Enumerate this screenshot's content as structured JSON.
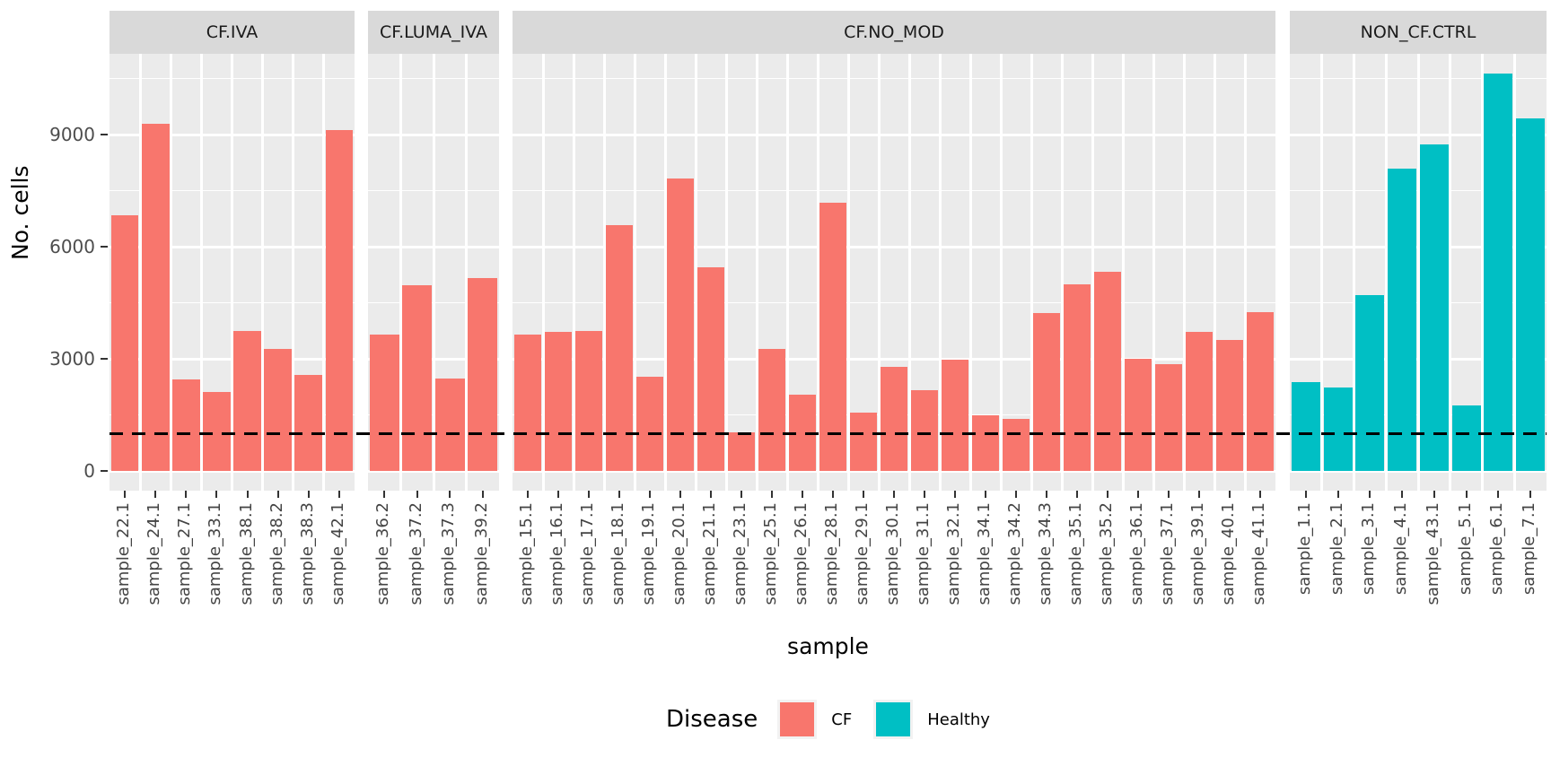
{
  "chart_data": {
    "type": "bar",
    "title": "",
    "xlabel": "sample",
    "ylabel": "No. cells",
    "ylim": [
      0,
      11160
    ],
    "yticks": [
      0,
      3000,
      6000,
      9000
    ],
    "ytick_labels": [
      "0",
      "3000",
      "6000",
      "9000"
    ],
    "minor_gridlines": [
      1500,
      4500,
      7500,
      10500
    ],
    "grid": "on",
    "hline": {
      "y": 1000,
      "style": "dashed",
      "color": "#000000"
    },
    "legend": {
      "title": "Disease",
      "position": "bottom",
      "entries": [
        {
          "label": "CF",
          "color": "#F8766D"
        },
        {
          "label": "Healthy",
          "color": "#00BFC4"
        }
      ]
    },
    "facets": [
      {
        "label": "CF.IVA",
        "group": "CF",
        "color": "#F8766D",
        "samples": [
          "sample_22.1",
          "sample_24.1",
          "sample_27.1",
          "sample_33.1",
          "sample_38.1",
          "sample_38.2",
          "sample_38.3",
          "sample_42.1"
        ],
        "values": [
          6840,
          9290,
          2460,
          2120,
          3740,
          3260,
          2580,
          9120
        ]
      },
      {
        "label": "CF.LUMA_IVA",
        "group": "CF",
        "color": "#F8766D",
        "samples": [
          "sample_36.2",
          "sample_37.2",
          "sample_37.3",
          "sample_39.2"
        ],
        "values": [
          3640,
          4970,
          2480,
          5160
        ]
      },
      {
        "label": "CF.NO_MOD",
        "group": "CF",
        "color": "#F8766D",
        "samples": [
          "sample_15.1",
          "sample_16.1",
          "sample_17.1",
          "sample_18.1",
          "sample_19.1",
          "sample_20.1",
          "sample_21.1",
          "sample_23.1",
          "sample_25.1",
          "sample_26.1",
          "sample_28.1",
          "sample_29.1",
          "sample_30.1",
          "sample_31.1",
          "sample_32.1",
          "sample_34.1",
          "sample_34.2",
          "sample_34.3",
          "sample_35.1",
          "sample_35.2",
          "sample_36.1",
          "sample_37.1",
          "sample_39.1",
          "sample_40.1",
          "sample_41.1"
        ],
        "values": [
          3640,
          3720,
          3740,
          6580,
          2520,
          7820,
          5460,
          1030,
          3260,
          2040,
          7180,
          1560,
          2780,
          2160,
          2980,
          1500,
          1390,
          4220,
          4990,
          5320,
          3000,
          2860,
          3720,
          3500,
          4240
        ]
      },
      {
        "label": "NON_CF.CTRL",
        "group": "Healthy",
        "color": "#00BFC4",
        "samples": [
          "sample_1.1",
          "sample_2.1",
          "sample_3.1",
          "sample_4.1",
          "sample_43.1",
          "sample_5.1",
          "sample_6.1",
          "sample_7.1"
        ],
        "values": [
          2380,
          2240,
          4700,
          8080,
          8740,
          1750,
          10640,
          9440
        ]
      }
    ],
    "style": {
      "panel_bg": "#EBEBEB",
      "strip_bg": "#D9D9D9",
      "gridline_color": "#FFFFFF",
      "axis_text_color": "#4D4D4D",
      "cf_color": "#F8766D",
      "healthy_color": "#00BFC4"
    }
  }
}
